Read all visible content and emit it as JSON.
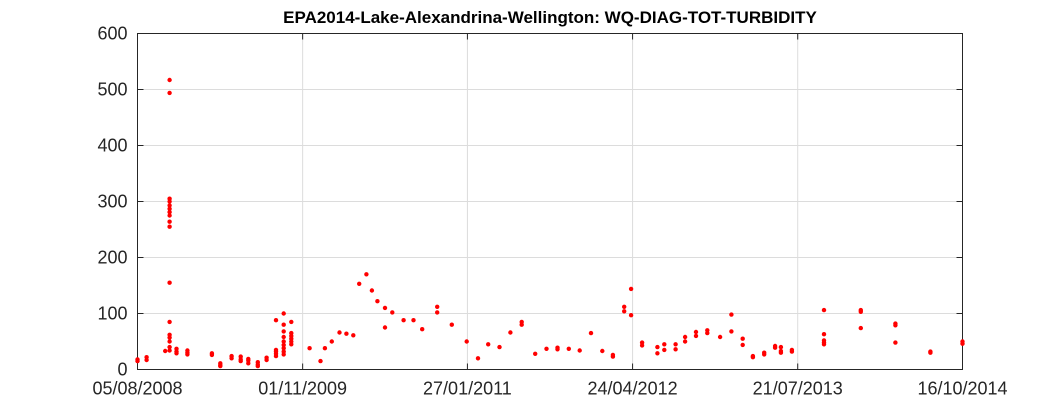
{
  "chart_data": {
    "type": "scatter",
    "title": "EPA2014-Lake-Alexandrina-Wellington: WQ-DIAG-TOT-TURBIDITY",
    "xlabel": "",
    "ylabel": "",
    "x_axis_type": "date",
    "xlim": [
      "2008-08-05",
      "2014-10-16"
    ],
    "ylim": [
      0,
      600
    ],
    "yticks": [
      0,
      100,
      200,
      300,
      400,
      500,
      600
    ],
    "xticks": [
      "05/08/2008",
      "01/11/2009",
      "27/01/2011",
      "24/04/2012",
      "21/07/2013",
      "16/10/2014"
    ],
    "xtick_dates": [
      "2008-08-05",
      "2009-11-01",
      "2011-01-27",
      "2012-04-24",
      "2013-07-21",
      "2014-10-16"
    ],
    "grid": true,
    "marker_color": "#ff0000",
    "points": [
      [
        "2008-08-05",
        18
      ],
      [
        "2008-08-05",
        15
      ],
      [
        "2008-08-30",
        22
      ],
      [
        "2008-08-30",
        17
      ],
      [
        "2008-10-20",
        33
      ],
      [
        "2008-11-01",
        517
      ],
      [
        "2008-11-01",
        494
      ],
      [
        "2008-11-01",
        305
      ],
      [
        "2008-11-01",
        300
      ],
      [
        "2008-11-01",
        293
      ],
      [
        "2008-11-01",
        287
      ],
      [
        "2008-11-01",
        281
      ],
      [
        "2008-11-01",
        275
      ],
      [
        "2008-11-01",
        264
      ],
      [
        "2008-11-01",
        255
      ],
      [
        "2008-11-01",
        155
      ],
      [
        "2008-11-01",
        85
      ],
      [
        "2008-11-01",
        62
      ],
      [
        "2008-11-01",
        57
      ],
      [
        "2008-11-01",
        50
      ],
      [
        "2008-11-01",
        40
      ],
      [
        "2008-11-01",
        34
      ],
      [
        "2008-11-20",
        37
      ],
      [
        "2008-11-20",
        32
      ],
      [
        "2008-11-20",
        29
      ],
      [
        "2008-12-20",
        34
      ],
      [
        "2008-12-20",
        30
      ],
      [
        "2008-12-20",
        27
      ],
      [
        "2009-02-25",
        29
      ],
      [
        "2009-02-25",
        26
      ],
      [
        "2009-03-20",
        11
      ],
      [
        "2009-03-20",
        8
      ],
      [
        "2009-03-20",
        6
      ],
      [
        "2009-04-20",
        24
      ],
      [
        "2009-04-20",
        20
      ],
      [
        "2009-05-15",
        23
      ],
      [
        "2009-05-15",
        18
      ],
      [
        "2009-05-15",
        15
      ],
      [
        "2009-06-05",
        19
      ],
      [
        "2009-06-05",
        16
      ],
      [
        "2009-06-05",
        11
      ],
      [
        "2009-07-01",
        13
      ],
      [
        "2009-07-01",
        9
      ],
      [
        "2009-07-01",
        6
      ],
      [
        "2009-07-25",
        21
      ],
      [
        "2009-07-25",
        17
      ],
      [
        "2009-08-20",
        88
      ],
      [
        "2009-08-20",
        35
      ],
      [
        "2009-08-20",
        32
      ],
      [
        "2009-08-20",
        28
      ],
      [
        "2009-08-20",
        24
      ],
      [
        "2009-09-10",
        100
      ],
      [
        "2009-09-10",
        80
      ],
      [
        "2009-09-10",
        68
      ],
      [
        "2009-09-10",
        58
      ],
      [
        "2009-09-10",
        50
      ],
      [
        "2009-09-10",
        44
      ],
      [
        "2009-09-10",
        38
      ],
      [
        "2009-09-10",
        32
      ],
      [
        "2009-09-10",
        27
      ],
      [
        "2009-10-01",
        85
      ],
      [
        "2009-10-01",
        65
      ],
      [
        "2009-10-01",
        60
      ],
      [
        "2009-10-01",
        55
      ],
      [
        "2009-10-01",
        50
      ],
      [
        "2009-10-01",
        45
      ],
      [
        "2009-11-20",
        38
      ],
      [
        "2009-12-20",
        15
      ],
      [
        "2010-01-01",
        38
      ],
      [
        "2010-01-20",
        50
      ],
      [
        "2010-02-10",
        66
      ],
      [
        "2010-03-01",
        64
      ],
      [
        "2010-03-20",
        61
      ],
      [
        "2010-04-05",
        153
      ],
      [
        "2010-04-25",
        170
      ],
      [
        "2010-05-10",
        141
      ],
      [
        "2010-05-25",
        122
      ],
      [
        "2010-06-15",
        75
      ],
      [
        "2010-06-15",
        110
      ],
      [
        "2010-07-05",
        102
      ],
      [
        "2010-08-05",
        88
      ],
      [
        "2010-09-01",
        88
      ],
      [
        "2010-09-25",
        72
      ],
      [
        "2010-11-05",
        112
      ],
      [
        "2010-11-05",
        102
      ],
      [
        "2010-12-15",
        80
      ],
      [
        "2011-01-25",
        50
      ],
      [
        "2011-02-25",
        20
      ],
      [
        "2011-03-25",
        45
      ],
      [
        "2011-04-25",
        40
      ],
      [
        "2011-05-25",
        66
      ],
      [
        "2011-06-25",
        85
      ],
      [
        "2011-06-25",
        80
      ],
      [
        "2011-08-01",
        28
      ],
      [
        "2011-09-01",
        37
      ],
      [
        "2011-10-01",
        36
      ],
      [
        "2011-10-01",
        39
      ],
      [
        "2011-11-01",
        37
      ],
      [
        "2011-12-01",
        34
      ],
      [
        "2012-01-01",
        65
      ],
      [
        "2012-02-01",
        33
      ],
      [
        "2012-03-01",
        26
      ],
      [
        "2012-03-01",
        23
      ],
      [
        "2012-04-01",
        112
      ],
      [
        "2012-04-01",
        104
      ],
      [
        "2012-04-20",
        144
      ],
      [
        "2012-04-20",
        97
      ],
      [
        "2012-05-20",
        48
      ],
      [
        "2012-05-20",
        43
      ],
      [
        "2012-07-01",
        40
      ],
      [
        "2012-07-01",
        29
      ],
      [
        "2012-07-20",
        45
      ],
      [
        "2012-07-20",
        35
      ],
      [
        "2012-08-20",
        45
      ],
      [
        "2012-08-20",
        36
      ],
      [
        "2012-09-15",
        58
      ],
      [
        "2012-09-15",
        50
      ],
      [
        "2012-10-15",
        67
      ],
      [
        "2012-10-15",
        60
      ],
      [
        "2012-11-15",
        70
      ],
      [
        "2012-11-15",
        65
      ],
      [
        "2012-12-20",
        58
      ],
      [
        "2013-01-20",
        98
      ],
      [
        "2013-01-20",
        68
      ],
      [
        "2013-02-20",
        55
      ],
      [
        "2013-02-20",
        44
      ],
      [
        "2013-03-20",
        24
      ],
      [
        "2013-03-20",
        22
      ],
      [
        "2013-04-20",
        30
      ],
      [
        "2013-04-20",
        27
      ],
      [
        "2013-05-20",
        42
      ],
      [
        "2013-05-20",
        39
      ],
      [
        "2013-06-05",
        40
      ],
      [
        "2013-06-05",
        33
      ],
      [
        "2013-06-05",
        30
      ],
      [
        "2013-07-05",
        35
      ],
      [
        "2013-07-05",
        32
      ],
      [
        "2013-10-01",
        106
      ],
      [
        "2013-10-01",
        63
      ],
      [
        "2013-10-01",
        52
      ],
      [
        "2013-10-01",
        48
      ],
      [
        "2013-10-01",
        45
      ],
      [
        "2014-01-10",
        106
      ],
      [
        "2014-01-10",
        103
      ],
      [
        "2014-01-10",
        74
      ],
      [
        "2014-04-15",
        82
      ],
      [
        "2014-04-15",
        79
      ],
      [
        "2014-04-15",
        48
      ],
      [
        "2014-07-20",
        32
      ],
      [
        "2014-07-20",
        30
      ],
      [
        "2014-10-16",
        50
      ],
      [
        "2014-10-16",
        46
      ]
    ]
  }
}
